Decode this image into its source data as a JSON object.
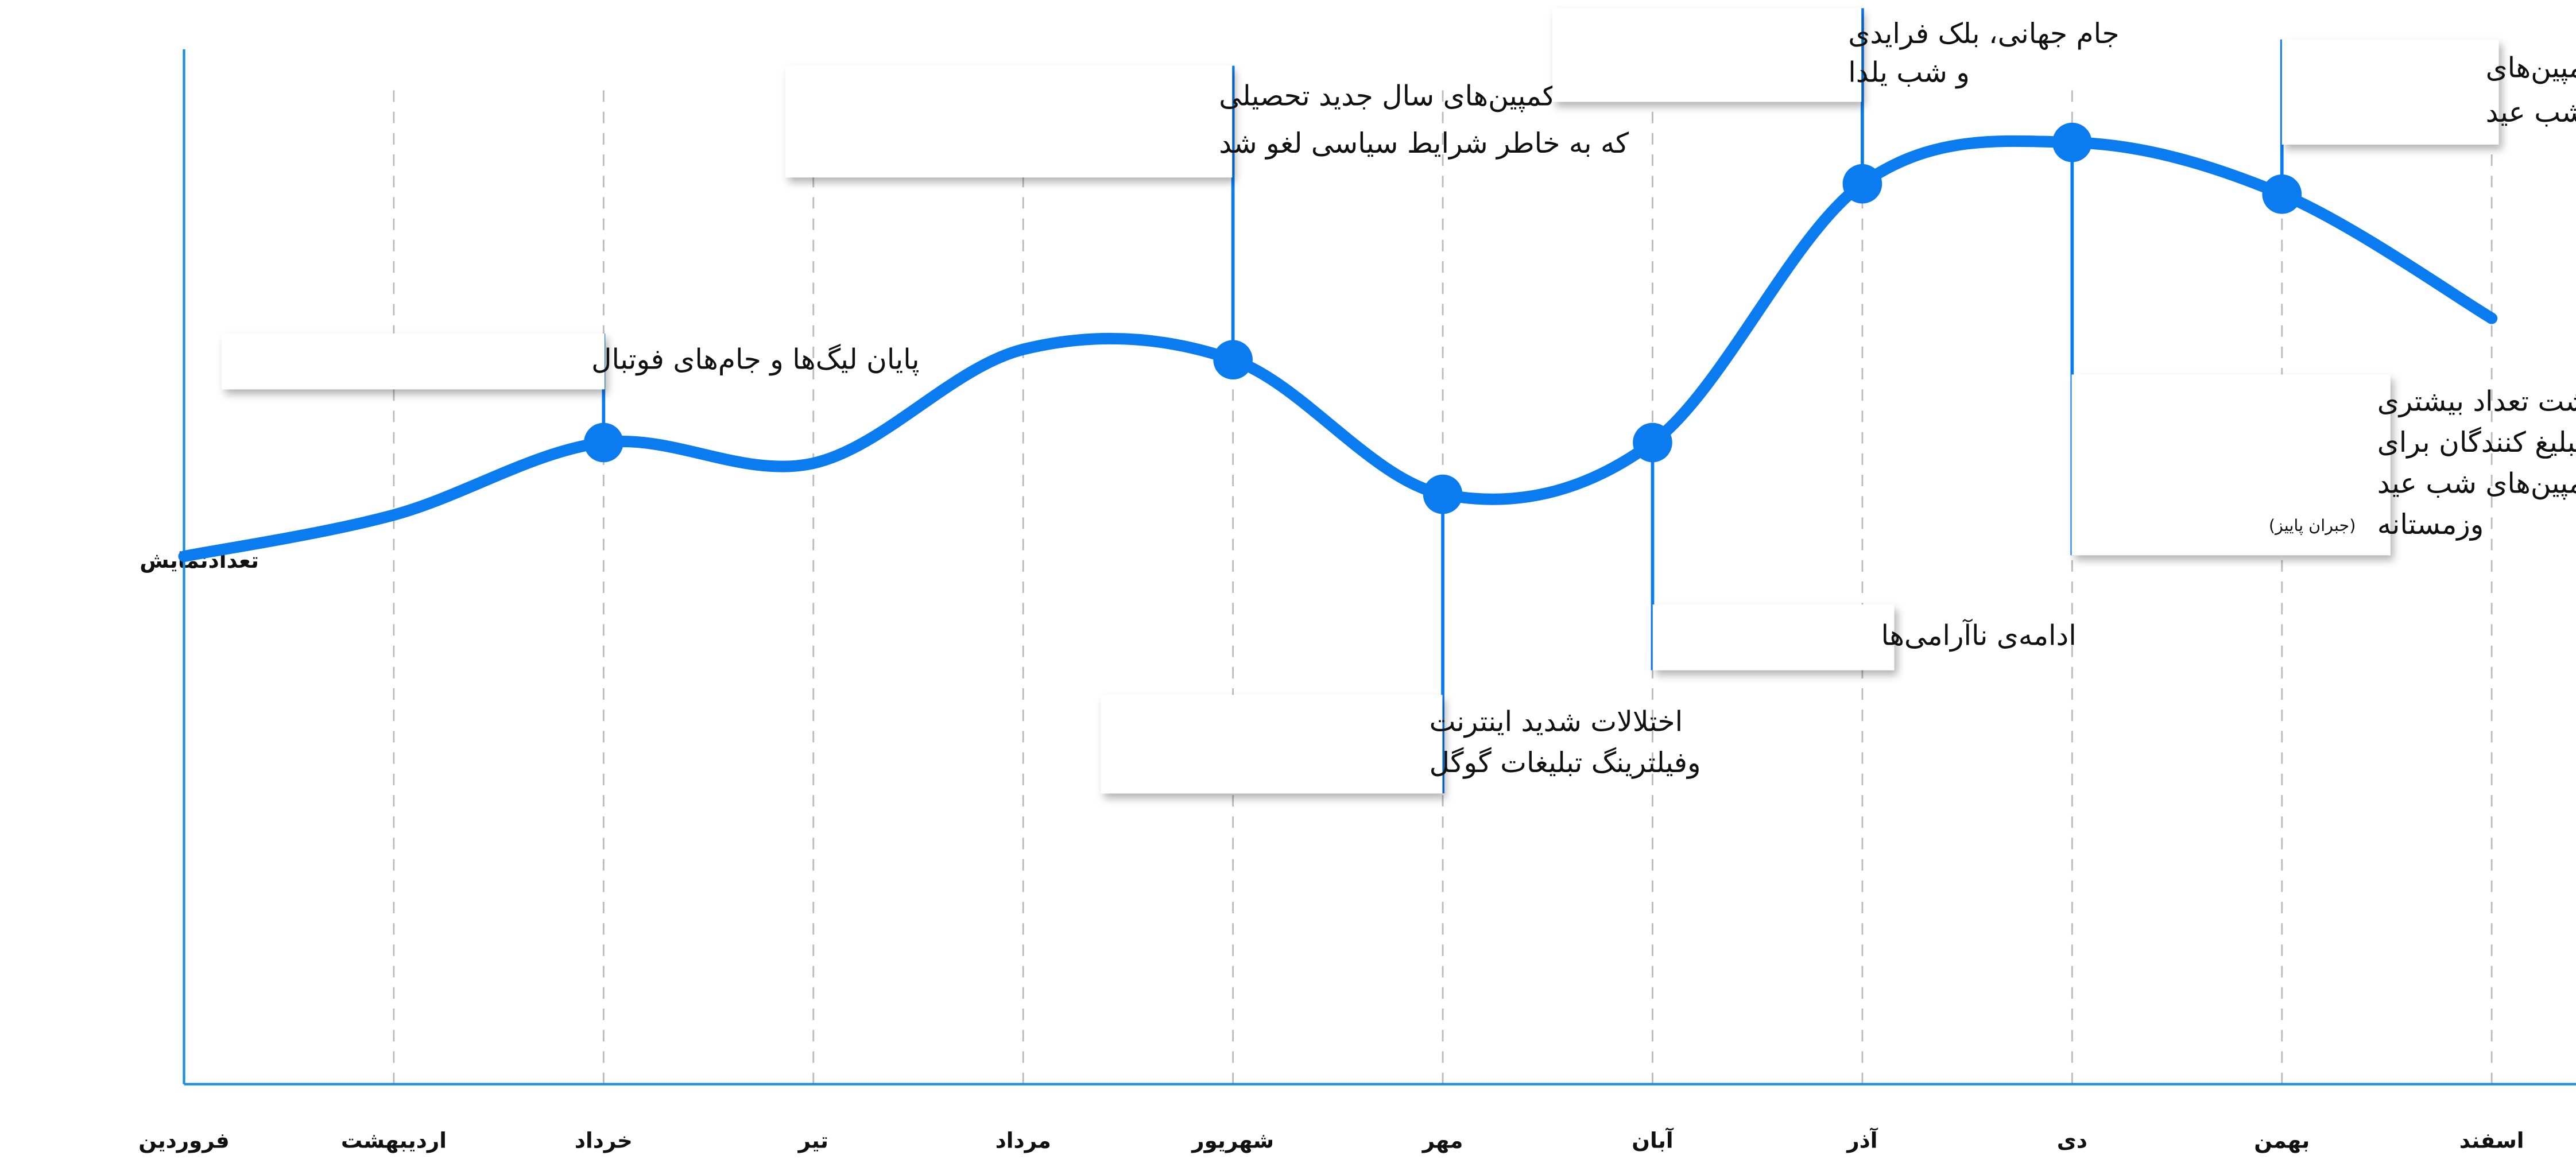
{
  "chart_data": {
    "type": "line",
    "ylabel": "تعدادنمایش",
    "categories": [
      "فروردین",
      "اردیبهشت",
      "خرداد",
      "تیر",
      "مرداد",
      "شهریور",
      "مهر",
      "آبان",
      "آذر",
      "دی",
      "بهمن",
      "اسفند"
    ],
    "series": [
      {
        "name": "تعدادنمایش",
        "color": "#0a7cf0",
        "values": [
          51,
          55,
          62,
          60,
          71,
          70,
          57,
          62,
          87,
          91,
          86,
          74
        ]
      }
    ],
    "ylim": [
      0,
      100
    ],
    "grid": true,
    "annotations": [
      {
        "lines": [
          "پایان لیگ‌ها و جام‌های فوتبال"
        ]
      },
      {
        "lines": [
          "کمپین‌های سال جدید تحصیلی",
          "که به خاطر شرایط سیاسی لغو شد"
        ]
      },
      {
        "lines": [
          "اختلالات شدید اینترنت",
          "وفیلترینگ تبلیغات گوگل"
        ]
      },
      {
        "lines": [
          "ادامه‌ی ناآرامی‌ها"
        ]
      },
      {
        "lines": [
          "جام جهانی، بلک فرایدی",
          "و شب یلدا"
        ]
      },
      {
        "lines": [
          "بازگشت تعداد بیشتری",
          "از تبلیغ کنندگان برای",
          "کمپین‌های شب عید",
          "وزمستانه"
        ],
        "note": "(جبران پاییز)"
      },
      {
        "lines": [
          "ادامه کمپین‌های",
          "خرید شب عید"
        ]
      }
    ]
  }
}
